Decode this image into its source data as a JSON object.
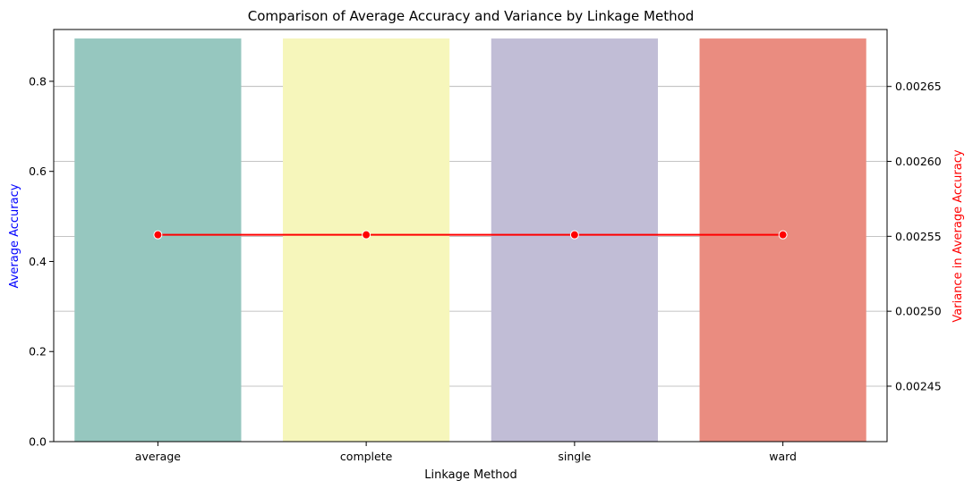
{
  "chart_data": {
    "type": "bar",
    "title": "Comparison of Average Accuracy and Variance by Linkage Method",
    "xlabel": "Linkage Method",
    "ylabel": "Average Accuracy",
    "ylabel_right": "Variance in Average Accuracy",
    "categories": [
      "average",
      "complete",
      "single",
      "ward"
    ],
    "series": [
      {
        "values": [
          0.895,
          0.895,
          0.895,
          0.895
        ],
        "axis": "left",
        "kind": "bar",
        "colors": [
          "#96c7bf",
          "#f6f6bb",
          "#c1bdd6",
          "#ea8c80"
        ]
      },
      {
        "values": [
          0.002551,
          0.002551,
          0.002551,
          0.002551
        ],
        "axis": "right",
        "kind": "line",
        "color": "#ff0000"
      }
    ],
    "ylim": [
      0,
      0.915
    ],
    "y_ticks": [
      0.0,
      0.2,
      0.4,
      0.6,
      0.8
    ],
    "y_tick_labels": [
      "0.0",
      "0.2",
      "0.4",
      "0.6",
      "0.8"
    ],
    "ylim_right": [
      0.002413,
      0.002688
    ],
    "y_right_ticks": [
      0.00245,
      0.0025,
      0.00255,
      0.0026,
      0.00265
    ],
    "y_right_tick_labels": [
      "0.00245",
      "0.00250",
      "0.00255",
      "0.00260",
      "0.00265"
    ],
    "grid": "horizontal, right axis",
    "ylabel_color": "#0000ff",
    "ylabel_right_color": "#ff0000"
  }
}
